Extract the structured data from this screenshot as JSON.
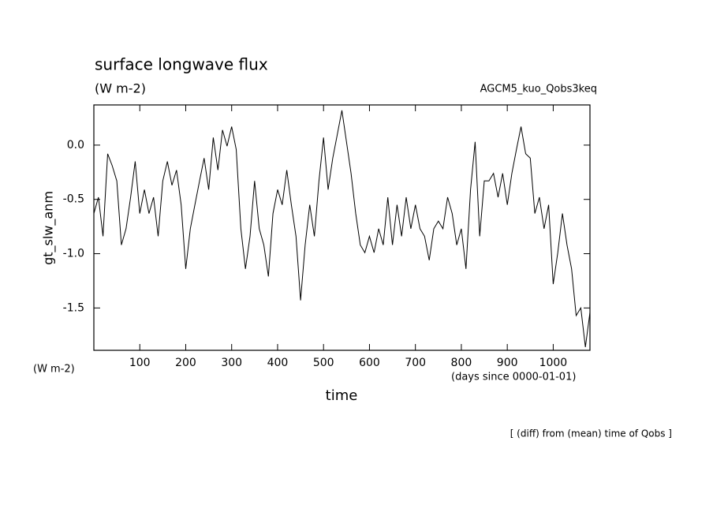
{
  "chart_data": {
    "type": "line",
    "title": "surface longwave flux",
    "subtitle": "(W m-2)",
    "experiment": "AGCM5_kuo_Qobs3keq",
    "ylabel": "gt_slw_anm",
    "xlabel": "time",
    "yunit": "(W m-2)",
    "xunit": "(days since 0000-01-01)",
    "note": "[ (diff) from (mean) time of Qobs ]",
    "xlim": [
      0,
      1080
    ],
    "ylim": [
      -1.89,
      0.37
    ],
    "xticks": [
      100,
      200,
      300,
      400,
      500,
      600,
      700,
      800,
      900,
      1000
    ],
    "yticks": [
      -1.5,
      {
        "value": -1,
        "label": "-1.0"
      },
      -0.5,
      {
        "value": 0,
        "label": "0.0"
      }
    ],
    "color": "#000000",
    "x": [
      0,
      10,
      20,
      30,
      40,
      50,
      60,
      70,
      80,
      90,
      100,
      110,
      120,
      130,
      140,
      150,
      160,
      170,
      180,
      190,
      200,
      210,
      220,
      230,
      240,
      250,
      260,
      270,
      280,
      290,
      300,
      310,
      320,
      330,
      340,
      350,
      360,
      370,
      380,
      390,
      400,
      410,
      420,
      430,
      440,
      450,
      460,
      470,
      480,
      490,
      500,
      510,
      520,
      530,
      540,
      550,
      560,
      570,
      580,
      590,
      600,
      610,
      620,
      630,
      640,
      650,
      660,
      670,
      680,
      690,
      700,
      710,
      720,
      730,
      740,
      750,
      760,
      770,
      780,
      790,
      800,
      810,
      820,
      830,
      840,
      850,
      860,
      870,
      880,
      890,
      900,
      910,
      920,
      930,
      940,
      950,
      960,
      970,
      980,
      990,
      1000,
      1010,
      1020,
      1030,
      1040,
      1050,
      1060,
      1070,
      1080
    ],
    "values": [
      -0.63,
      -0.48,
      -0.84,
      -0.08,
      -0.19,
      -0.33,
      -0.92,
      -0.77,
      -0.48,
      -0.15,
      -0.63,
      -0.41,
      -0.63,
      -0.48,
      -0.84,
      -0.33,
      -0.15,
      -0.37,
      -0.23,
      -0.55,
      -1.14,
      -0.77,
      -0.55,
      -0.33,
      -0.12,
      -0.41,
      0.07,
      -0.23,
      0.14,
      -0.01,
      0.17,
      -0.04,
      -0.77,
      -1.14,
      -0.84,
      -0.33,
      -0.77,
      -0.92,
      -1.21,
      -0.63,
      -0.41,
      -0.55,
      -0.23,
      -0.55,
      -0.84,
      -1.43,
      -0.92,
      -0.55,
      -0.84,
      -0.33,
      0.07,
      -0.41,
      -0.12,
      0.1,
      0.32,
      0.03,
      -0.26,
      -0.63,
      -0.92,
      -0.99,
      -0.84,
      -0.99,
      -0.77,
      -0.92,
      -0.48,
      -0.92,
      -0.55,
      -0.84,
      -0.48,
      -0.77,
      -0.55,
      -0.77,
      -0.84,
      -1.06,
      -0.77,
      -0.7,
      -0.77,
      -0.48,
      -0.63,
      -0.92,
      -0.77,
      -1.14,
      -0.41,
      0.03,
      -0.84,
      -0.33,
      -0.33,
      -0.26,
      -0.48,
      -0.26,
      -0.55,
      -0.26,
      -0.04,
      0.17,
      -0.08,
      -0.12,
      -0.63,
      -0.48,
      -0.77,
      -0.55,
      -1.28,
      -0.99,
      -0.63,
      -0.92,
      -1.14,
      -1.57,
      -1.5,
      -1.86,
      -1.54
    ]
  }
}
